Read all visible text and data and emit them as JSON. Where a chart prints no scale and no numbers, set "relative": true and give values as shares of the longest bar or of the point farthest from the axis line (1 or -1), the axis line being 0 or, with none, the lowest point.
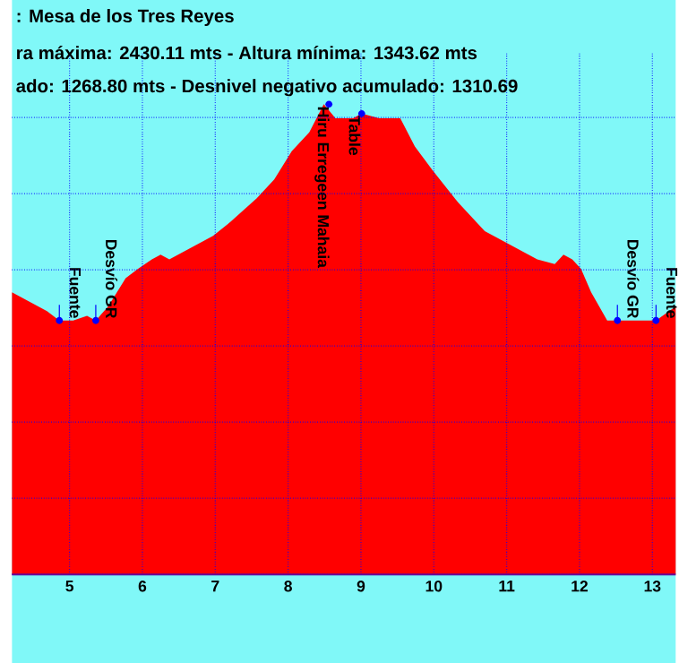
{
  "chart_data": {
    "type": "area",
    "title": ": Mesa de los Tres Reyes",
    "subtitle": "ra máxima: 2430.11 mts - Altura mínima: 1343.62 mts",
    "annotations": [
      "ado: 1268.80 mts - Desnivel negativo acumulado: 1310.69",
      {
        "text": "Fuente",
        "x": 4.86,
        "y": 0.54
      },
      {
        "text": "Desvío GR",
        "x": 5.36,
        "y": 0.54
      },
      {
        "text": "Hiru Erregeen Mahaia",
        "x": 8.56,
        "y": 1.0
      },
      {
        "text": "Table",
        "x": 9.01,
        "y": 0.98
      },
      {
        "text": "Desvío GR",
        "x": 12.52,
        "y": 0.54
      },
      {
        "text": "Fuente",
        "x": 13.05,
        "y": 0.54
      }
    ],
    "x": [
      4.21,
      4.45,
      4.69,
      4.86,
      5.05,
      5.24,
      5.36,
      5.53,
      5.77,
      5.94,
      6.13,
      6.25,
      6.37,
      6.61,
      6.97,
      7.21,
      7.57,
      7.81,
      8.05,
      8.29,
      8.49,
      8.65,
      8.89,
      9.01,
      9.25,
      9.54,
      9.74,
      9.98,
      10.34,
      10.7,
      11.06,
      11.42,
      11.66,
      11.78,
      11.9,
      12.02,
      12.16,
      12.38,
      12.52,
      12.74,
      13.05,
      13.32
    ],
    "values": [
      0.6,
      0.58,
      0.56,
      0.54,
      0.54,
      0.55,
      0.54,
      0.57,
      0.63,
      0.65,
      0.67,
      0.68,
      0.67,
      0.69,
      0.72,
      0.75,
      0.8,
      0.84,
      0.9,
      0.94,
      1.0,
      0.97,
      0.97,
      0.98,
      0.97,
      0.97,
      0.91,
      0.86,
      0.79,
      0.73,
      0.7,
      0.67,
      0.66,
      0.68,
      0.67,
      0.65,
      0.6,
      0.54,
      0.54,
      0.54,
      0.54,
      0.57
    ],
    "color": "#ff0000",
    "relative": true,
    "xlim": [
      4.21,
      13.32
    ],
    "xticks": [
      5,
      6,
      7,
      8,
      9,
      10,
      11,
      12,
      13
    ],
    "grid": true
  }
}
